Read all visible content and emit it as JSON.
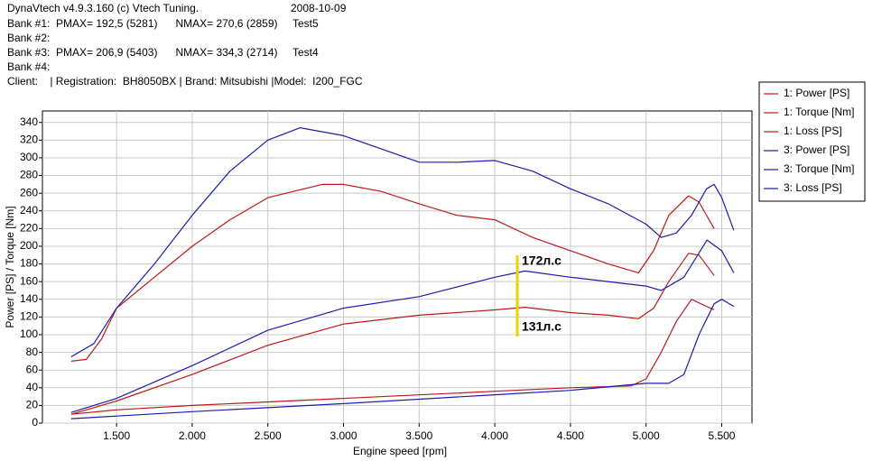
{
  "chart_data": {
    "type": "line",
    "header_lines": [
      "DynaVtech v4.9.3.160 (c) Vtech Tuning.",
      "Bank #1:  PMAX= 192,5 (5281)      NMAX= 270,6 (2859)     Test5",
      "Bank #2:",
      "Bank #3:  PMAX= 206,9 (5403)      NMAX= 334,3 (2714)     Test4",
      "Bank #4:",
      "Client:    | Registration:  BH8050BX | Brand: Mitsubishi |Model:  I200_FGC"
    ],
    "date": "2008-10-09",
    "x_label": "Engine speed [rpm]",
    "y_label": "Power [PS] / Torque [Nm]",
    "annotations": [
      "172л.с",
      "131л.с"
    ],
    "xlim": [
      1010,
      5700
    ],
    "ylim": [
      0,
      353
    ],
    "xticks": [
      {
        "value": 1500,
        "label": "1.500"
      },
      {
        "value": 2000,
        "label": "2.000"
      },
      {
        "value": 2500,
        "label": "2.500"
      },
      {
        "value": 3000,
        "label": "3.000"
      },
      {
        "value": 3500,
        "label": "3.500"
      },
      {
        "value": 4000,
        "label": "4.000"
      },
      {
        "value": 4500,
        "label": "4.500"
      },
      {
        "value": 5000,
        "label": "5.000"
      },
      {
        "value": 5500,
        "label": "5.500"
      }
    ],
    "yticks": [
      0,
      20,
      40,
      60,
      80,
      100,
      120,
      140,
      160,
      180,
      200,
      220,
      240,
      260,
      280,
      300,
      320,
      340
    ],
    "grid": true,
    "series": [
      {
        "name": "1: Power [PS]",
        "color": "#c01818",
        "x": [
          1200,
          1500,
          2000,
          2500,
          3000,
          3500,
          4000,
          4200,
          4500,
          4750,
          4950,
          5050,
          5150,
          5281,
          5350,
          5450
        ],
        "values": [
          10,
          25,
          55,
          88,
          112,
          122,
          128,
          131,
          125,
          122,
          118,
          130,
          160,
          192,
          190,
          167
        ]
      },
      {
        "name": "1: Torque [Nm]",
        "color": "#c01818",
        "x": [
          1200,
          1300,
          1400,
          1500,
          1750,
          2000,
          2250,
          2500,
          2859,
          3000,
          3250,
          3500,
          3750,
          4000,
          4250,
          4500,
          4750,
          4950,
          5050,
          5150,
          5281,
          5350,
          5450
        ],
        "values": [
          70,
          72,
          95,
          130,
          165,
          200,
          230,
          255,
          270,
          270,
          262,
          248,
          235,
          230,
          210,
          195,
          180,
          170,
          195,
          235,
          257,
          250,
          220
        ]
      },
      {
        "name": "1: Loss [PS]",
        "color": "#c01818",
        "x": [
          1200,
          1500,
          2000,
          3000,
          4000,
          4500,
          4900,
          5000,
          5100,
          5200,
          5300,
          5450
        ],
        "values": [
          10,
          15,
          20,
          28,
          36,
          40,
          42,
          50,
          80,
          115,
          140,
          128
        ]
      },
      {
        "name": "3: Power [PS]",
        "color": "#1c1cb0",
        "x": [
          1200,
          1500,
          2000,
          2500,
          3000,
          3500,
          4000,
          4200,
          4500,
          5000,
          5100,
          5250,
          5403,
          5500,
          5580
        ],
        "values": [
          12,
          28,
          65,
          105,
          130,
          143,
          165,
          172,
          165,
          155,
          150,
          165,
          207,
          195,
          170
        ]
      },
      {
        "name": "3: Torque [Nm]",
        "color": "#1c1cb0",
        "x": [
          1200,
          1350,
          1500,
          1750,
          2000,
          2250,
          2500,
          2714,
          3000,
          3250,
          3500,
          3750,
          4000,
          4250,
          4500,
          4750,
          5000,
          5100,
          5200,
          5300,
          5400,
          5450,
          5500,
          5580
        ],
        "values": [
          75,
          90,
          130,
          180,
          235,
          285,
          320,
          334,
          325,
          310,
          295,
          295,
          297,
          285,
          265,
          248,
          225,
          210,
          215,
          235,
          265,
          270,
          255,
          218
        ]
      },
      {
        "name": "3: Loss [PS]",
        "color": "#1c1cb0",
        "x": [
          1200,
          1500,
          2000,
          3000,
          4000,
          4500,
          5000,
          5150,
          5250,
          5350,
          5450,
          5500,
          5580
        ],
        "values": [
          5,
          8,
          13,
          22,
          32,
          37,
          45,
          45,
          55,
          100,
          135,
          140,
          132
        ]
      }
    ]
  }
}
